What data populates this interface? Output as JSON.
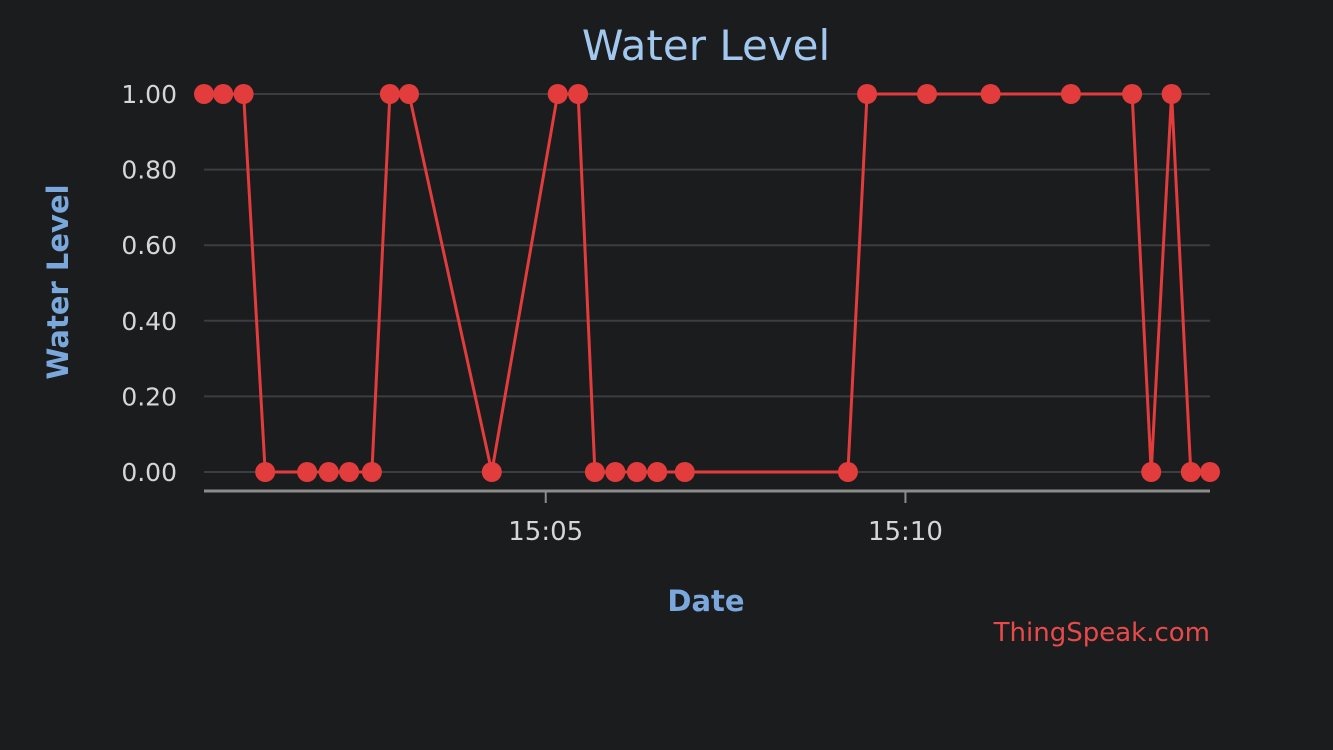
{
  "colors": {
    "background": "#1b1c1e",
    "series": "#e23c3c",
    "title": "#a3c8ef",
    "axis_title": "#7aa8dc",
    "credit": "#e84a4a"
  },
  "credit_text": "ThingSpeak.com",
  "chart_data": {
    "type": "line",
    "title": "Water Level",
    "xlabel": "Date",
    "ylabel": "Water Level",
    "ylim": [
      0,
      1
    ],
    "y_ticks": [
      "0.00",
      "0.20",
      "0.40",
      "0.60",
      "0.80",
      "1.00"
    ],
    "x_ticks": [
      "15:05",
      "15:10"
    ],
    "grid": true,
    "markers": true,
    "series": [
      {
        "x": [
          "15:00:15",
          "15:00:31",
          "15:00:48",
          "15:01:06",
          "15:01:41",
          "15:01:59",
          "15:02:16",
          "15:02:35",
          "15:02:50",
          "15:03:06",
          "15:04:15",
          "15:05:10",
          "15:05:27",
          "15:05:41",
          "15:05:58",
          "15:06:16",
          "15:06:33",
          "15:06:56",
          "15:09:12",
          "15:09:28",
          "15:10:18",
          "15:11:11",
          "15:12:18",
          "15:13:09",
          "15:13:25",
          "15:13:42",
          "15:13:58",
          "15:14:14"
        ],
        "values": [
          1,
          1,
          1,
          0,
          0,
          0,
          0,
          0,
          1,
          1,
          0,
          1,
          1,
          0,
          0,
          0,
          0,
          0,
          0,
          1,
          1,
          1,
          1,
          1,
          0,
          1,
          0,
          0
        ]
      }
    ]
  }
}
